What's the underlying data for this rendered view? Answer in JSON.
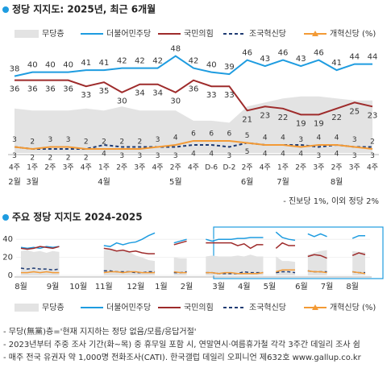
{
  "chart_data": [
    {
      "type": "line",
      "title": "정당 지지도: 2025년, 최근 6개월",
      "note": "- 진보당 1%, 이외 정당 2%",
      "categories": [
        "4주",
        "1주",
        "2주",
        "3주",
        "4주",
        "1주",
        "2주",
        "3주",
        "4주",
        "2주",
        "4주",
        "D-6",
        "D-2",
        "2주",
        "4주",
        "1주",
        "2주",
        "3주",
        "2주",
        "3주",
        "4주"
      ],
      "months": [
        "2월",
        "3월",
        null,
        null,
        null,
        "4월",
        null,
        null,
        null,
        "5월",
        null,
        null,
        null,
        "6월",
        null,
        "7월",
        null,
        null,
        "8월",
        null,
        null
      ],
      "ylim": [
        0,
        55
      ],
      "data_labels": true,
      "series": [
        {
          "name": "무당층",
          "color": "#e3e3e3",
          "style": "area",
          "values": [
            22,
            21,
            21,
            21,
            22,
            21,
            23,
            21,
            21,
            21,
            16,
            16,
            15,
            23,
            25,
            27,
            28,
            28,
            27,
            26,
            26
          ]
        },
        {
          "name": "더불어민주당",
          "color": "#1e9ce0",
          "style": "line",
          "label_position": "above",
          "values": [
            38,
            40,
            40,
            40,
            41,
            41,
            42,
            42,
            42,
            48,
            42,
            40,
            39,
            46,
            43,
            46,
            43,
            46,
            41,
            44,
            44
          ]
        },
        {
          "name": "국민의힘",
          "color": "#9e2b2b",
          "style": "line",
          "label_position": "below",
          "values": [
            36,
            36,
            36,
            36,
            33,
            35,
            30,
            34,
            34,
            30,
            36,
            33,
            33,
            21,
            23,
            22,
            19,
            19,
            22,
            25,
            23
          ]
        },
        {
          "name": "조국혁신당",
          "color": "#1f3b73",
          "style": "dashed",
          "label_position": "below",
          "values": [
            3,
            2,
            2,
            2,
            2,
            4,
            3,
            3,
            3,
            3,
            4,
            4,
            3,
            5,
            4,
            4,
            4,
            3,
            4,
            3,
            3
          ]
        },
        {
          "name": "개혁신당 (%)",
          "color": "#f39a35",
          "style": "line",
          "marker": "triangle",
          "label_position": "above",
          "values": [
            3,
            2,
            3,
            3,
            2,
            2,
            2,
            2,
            3,
            4,
            6,
            6,
            6,
            5,
            4,
            4,
            3,
            4,
            4,
            3,
            2
          ]
        }
      ]
    },
    {
      "type": "line",
      "title": "주요 정당 지지도 2024-2025",
      "categories": [
        "8월",
        null,
        null,
        null,
        null,
        "9월",
        null,
        null,
        null,
        "10월",
        null,
        null,
        null,
        "11월",
        null,
        null,
        null,
        null,
        "12월",
        null,
        null,
        null,
        "1월",
        null,
        null,
        null,
        "2월",
        null,
        null,
        null,
        null,
        "3월",
        null,
        null,
        null,
        "4월",
        null,
        null,
        null,
        "5월",
        null,
        null,
        null,
        null,
        "6월",
        null,
        null,
        null,
        "7월",
        null,
        null,
        null,
        "8월",
        null,
        null
      ],
      "ylim": [
        0,
        50
      ],
      "yticks": [
        0,
        20,
        40
      ],
      "grid": true,
      "series": [
        {
          "name": "무당층",
          "color": "#e3e3e3",
          "style": "area",
          "values": [
            27,
            28,
            26,
            27,
            25,
            27,
            26,
            null,
            null,
            28,
            null,
            null,
            null,
            28,
            29,
            27,
            28,
            26,
            22,
            20,
            17,
            16,
            null,
            null,
            20,
            19,
            19,
            null,
            null,
            21,
            22,
            21,
            21,
            21,
            22,
            21,
            23,
            21,
            21,
            null,
            21,
            16,
            16,
            15,
            null,
            23,
            25,
            27,
            28,
            null,
            28,
            null,
            27,
            26,
            26
          ]
        },
        {
          "name": "더불어민주당",
          "color": "#1e9ce0",
          "style": "line",
          "values": [
            31,
            30,
            31,
            30,
            32,
            31,
            32,
            null,
            null,
            31,
            null,
            null,
            null,
            33,
            32,
            36,
            34,
            36,
            37,
            40,
            44,
            47,
            null,
            null,
            36,
            38,
            40,
            null,
            null,
            40,
            38,
            40,
            40,
            40,
            41,
            41,
            42,
            42,
            42,
            null,
            48,
            42,
            40,
            39,
            null,
            46,
            43,
            46,
            43,
            null,
            46,
            null,
            41,
            44,
            44
          ]
        },
        {
          "name": "국민의힘",
          "color": "#9e2b2b",
          "style": "line",
          "values": [
            30,
            29,
            30,
            32,
            31,
            30,
            32,
            null,
            null,
            29,
            null,
            null,
            null,
            30,
            29,
            27,
            28,
            26,
            27,
            25,
            24,
            24,
            null,
            null,
            34,
            36,
            38,
            null,
            null,
            36,
            36,
            36,
            36,
            36,
            33,
            35,
            30,
            34,
            34,
            null,
            30,
            36,
            33,
            33,
            null,
            21,
            23,
            22,
            19,
            null,
            19,
            null,
            22,
            25,
            23
          ]
        },
        {
          "name": "조국혁신당",
          "color": "#1f3b73",
          "style": "dashed",
          "values": [
            8,
            7,
            8,
            7,
            7,
            6,
            7,
            null,
            null,
            6,
            null,
            null,
            null,
            5,
            5,
            4,
            4,
            4,
            3,
            3,
            4,
            4,
            null,
            null,
            3,
            3,
            4,
            null,
            null,
            3,
            3,
            2,
            2,
            2,
            2,
            4,
            3,
            3,
            3,
            null,
            3,
            4,
            4,
            3,
            null,
            5,
            4,
            4,
            4,
            null,
            3,
            null,
            4,
            3,
            3
          ]
        },
        {
          "name": "개혁신당 (%)",
          "color": "#f39a35",
          "style": "line",
          "marker": "triangle",
          "values": [
            3,
            3,
            4,
            3,
            4,
            3,
            3,
            null,
            null,
            3,
            null,
            null,
            null,
            3,
            4,
            4,
            3,
            4,
            4,
            3,
            3,
            3,
            null,
            null,
            4,
            3,
            3,
            null,
            null,
            3,
            3,
            2,
            3,
            3,
            2,
            2,
            2,
            2,
            3,
            null,
            4,
            6,
            6,
            6,
            null,
            5,
            4,
            4,
            3,
            null,
            4,
            null,
            4,
            3,
            2
          ]
        }
      ]
    }
  ],
  "footnotes": [
    "- 무당(無黨)층='현재 지지하는 정당 없음/모름/응답거절'",
    "- 2023년부터 주중 조사 기간(화~목) 중 휴무일 포함 시, 연말연시·여름휴가철 각각 3주간 데일리 조사 쉼",
    "- 매주 전국 유권자 약 1,000명 전화조사(CATI). 한국갤럽 데일리 오피니언 제632호 www.gallup.co.kr"
  ]
}
